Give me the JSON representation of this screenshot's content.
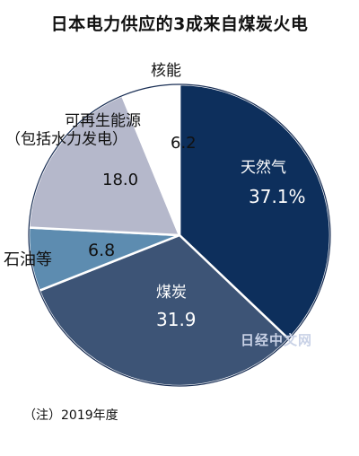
{
  "chart_data": {
    "type": "pie",
    "title": "日本电力供应的3成来自煤炭火电",
    "slices": [
      {
        "label": "天然气",
        "value": 37.1,
        "value_label": "37.1%",
        "color": "#0d2f5c"
      },
      {
        "label": "煤炭",
        "value": 31.9,
        "value_label": "31.9",
        "color": "#3d5476"
      },
      {
        "label": "石油等",
        "value": 6.8,
        "value_label": "6.8",
        "color": "#5d8cb0"
      },
      {
        "label": "可再生能源\n（包括水力发电）",
        "value": 18.0,
        "value_label": "18.0",
        "color": "#b5b8cb"
      },
      {
        "label": "核能",
        "value": 6.2,
        "value_label": "6.2",
        "color": "#ffffff"
      }
    ],
    "note": "（注）2019年度"
  },
  "watermark": "日经中文网"
}
